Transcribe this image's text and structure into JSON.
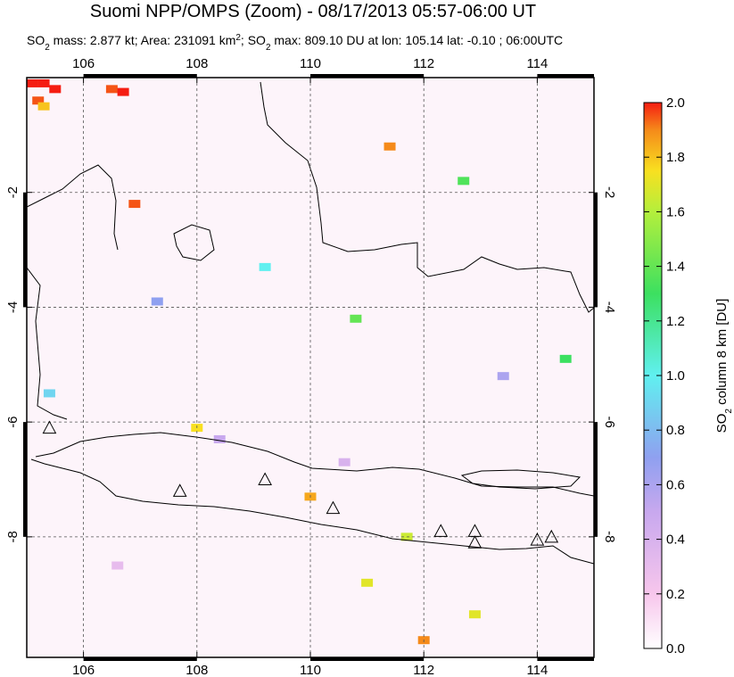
{
  "chart_data": {
    "type": "map",
    "title": "Suomi NPP/OMPS (Zoom) - 08/17/2013 05:57-06:00 UT",
    "subtitle_parts": [
      "SO",
      "2",
      " mass: 2.877 kt; Area: 231091 km",
      "2",
      "; SO",
      "2",
      " max: 809.10 DU at lon: 105.14 lat: -0.10 ; 06:00UTC"
    ],
    "xlim": [
      105,
      115
    ],
    "ylim": [
      -10.1,
      0
    ],
    "xticks": [
      106,
      108,
      110,
      112,
      114
    ],
    "yticks": [
      -2,
      -4,
      -6,
      -8
    ],
    "grid": true,
    "colorbar_label_parts": [
      "SO",
      "2",
      " column 8 km [DU]"
    ],
    "colorbar_lim": [
      0,
      2
    ],
    "colorbar_ticks": [
      {
        "value": 0,
        "label": "0.0"
      },
      0.2,
      0.4,
      0.6,
      0.8,
      {
        "value": 1,
        "label": "1.0"
      },
      1.2,
      1.4,
      1.6,
      1.8,
      {
        "value": 2,
        "label": "2.0"
      }
    ],
    "colormap_stops": [
      [
        0,
        "#ffffff"
      ],
      [
        0.2,
        "#f7c6ec"
      ],
      [
        0.5,
        "#c8a8ee"
      ],
      [
        0.7,
        "#8fa0f0"
      ],
      [
        1.0,
        "#60f0f0"
      ],
      [
        1.3,
        "#3ce060"
      ],
      [
        1.6,
        "#b4ef3c"
      ],
      [
        1.75,
        "#f8e020"
      ],
      [
        1.9,
        "#f58a1a"
      ],
      [
        2.0,
        "#f51d12"
      ]
    ],
    "pixels": {
      "lon": [
        105.1,
        105.3,
        105.5,
        105.2,
        105.3,
        106.5,
        106.7,
        106.9,
        111.4,
        112.0,
        110.0,
        108.0,
        111.0,
        112.9,
        111.7,
        110.8,
        112.7,
        114.5,
        105.4,
        109.2,
        107.3,
        113.4,
        108.4,
        110.6,
        106.6
      ],
      "lat": [
        -0.1,
        -0.1,
        -0.2,
        -0.4,
        -0.5,
        -0.2,
        -0.25,
        -2.2,
        -1.2,
        -9.8,
        -7.3,
        -6.1,
        -8.8,
        -9.35,
        -8.0,
        -4.2,
        -1.8,
        -4.9,
        -5.5,
        -3.3,
        -3.9,
        -5.2,
        -6.3,
        -6.7,
        -8.5
      ],
      "values": [
        2.0,
        2.0,
        2.0,
        1.95,
        1.8,
        1.95,
        2.0,
        1.95,
        1.9,
        1.9,
        1.85,
        1.75,
        1.7,
        1.7,
        1.65,
        1.4,
        1.35,
        1.3,
        0.9,
        1.0,
        0.7,
        0.6,
        0.5,
        0.4,
        0.3
      ]
    },
    "volcanoes": {
      "lon": [
        105.4,
        107.7,
        109.2,
        110.4,
        112.3,
        112.9,
        112.9,
        114.0,
        114.25
      ],
      "lat": [
        -6.1,
        -7.2,
        -7.0,
        -7.5,
        -7.9,
        -7.9,
        -8.1,
        -8.05,
        -8.0
      ]
    }
  }
}
